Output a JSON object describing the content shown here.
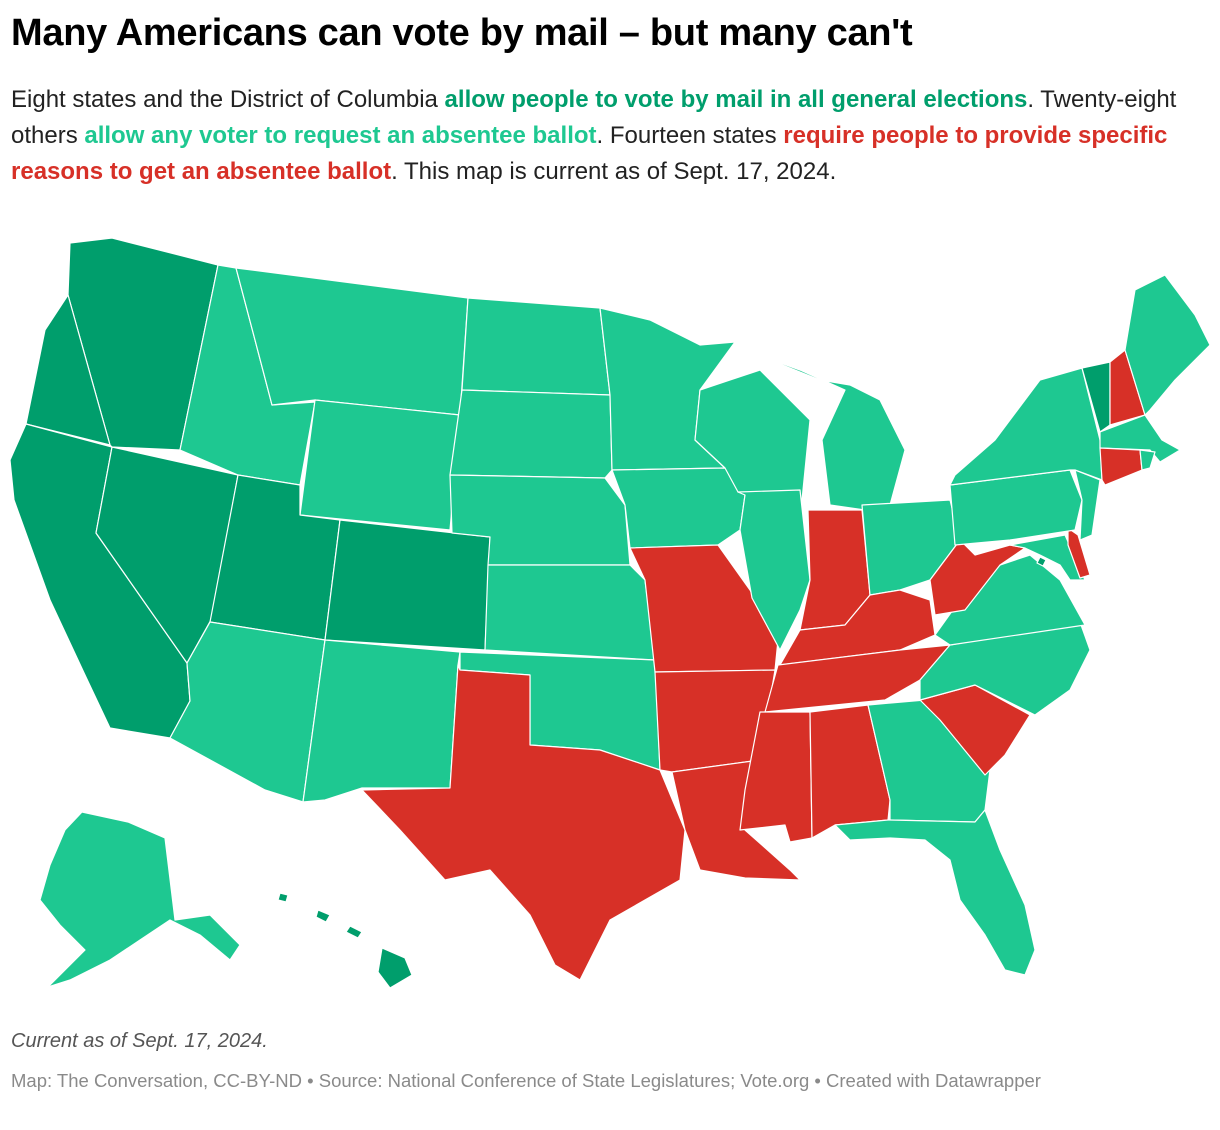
{
  "header": {
    "title": "Many Americans can vote by mail – but many can't"
  },
  "description": {
    "part1": "Eight states and the District of Columbia ",
    "hl_all": "allow people to vote by mail in all general elections",
    "part2": ". Twenty-eight others ",
    "hl_any": "allow any voter to request an absentee ballot",
    "part3": ". Fourteen states ",
    "hl_req": "require people to provide specific reasons to get an absentee ballot",
    "part4": ". This map is current as of Sept. 17, 2024."
  },
  "legend": {
    "colors": {
      "all_mail": "#009e6c",
      "any_absentee": "#1ec891",
      "excuse_required": "#d73027"
    }
  },
  "map": {
    "categories": {
      "all_mail": [
        "WA",
        "OR",
        "CA",
        "NV",
        "UT",
        "CO",
        "HI",
        "VT",
        "DC"
      ],
      "excuse_required": [
        "TX",
        "LA",
        "AR",
        "MO",
        "MS",
        "AL",
        "TN",
        "KY",
        "IN",
        "WV",
        "SC",
        "NH",
        "CT",
        "DE"
      ],
      "any_absentee": [
        "AK",
        "AZ",
        "NM",
        "ID",
        "MT",
        "WY",
        "ND",
        "SD",
        "NE",
        "KS",
        "OK",
        "MN",
        "IA",
        "WI",
        "IL",
        "MI",
        "OH",
        "PA",
        "NY",
        "NJ",
        "MD",
        "VA",
        "NC",
        "GA",
        "FL",
        "ME",
        "MA",
        "RI"
      ]
    }
  },
  "notes": {
    "text": "Current as of Sept. 17, 2024."
  },
  "footer": {
    "text": "Map: The Conversation, CC-BY-ND • Source: National Conference of State Legislatures; Vote.org • Created with Datawrapper"
  }
}
